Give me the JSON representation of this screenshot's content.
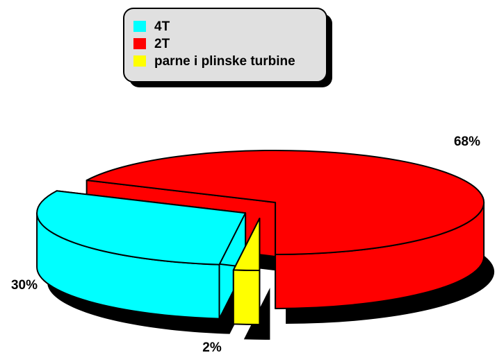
{
  "chart_data": {
    "type": "pie3d",
    "categories": [
      "4T",
      "2T",
      "parne i plinske turbine"
    ],
    "values": [
      30,
      68,
      2
    ],
    "value_labels": [
      "30%",
      "68%",
      "2%"
    ],
    "colors": [
      "#00ffff",
      "#ff0000",
      "#ffff00"
    ],
    "legend": "top"
  }
}
